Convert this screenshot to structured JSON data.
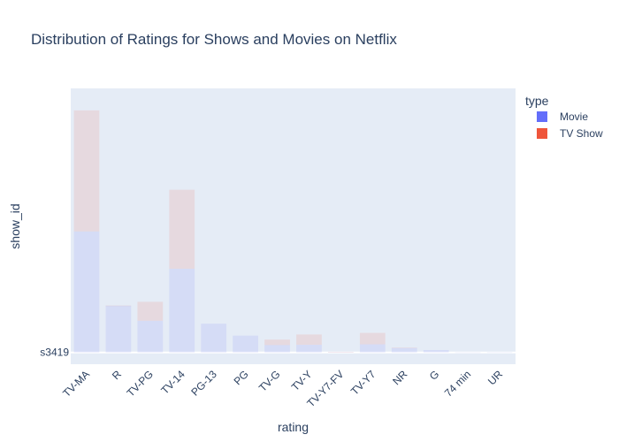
{
  "chart_data": {
    "type": "bar",
    "barmode": "stack",
    "title": "Distribution of Ratings for Shows and Movies on Netflix",
    "xlabel": "rating",
    "ylabel": "show_id",
    "y_tick_label": "s3419",
    "categories": [
      "TV-MA",
      "R",
      "TV-PG",
      "TV-14",
      "PG-13",
      "PG",
      "TV-G",
      "TV-Y",
      "TV-Y7-FV",
      "TV-Y7",
      "NR",
      "G",
      "74 min",
      "UR"
    ],
    "legend_title": "type",
    "legend_position": "top-right",
    "series": [
      {
        "name": "Movie",
        "color": "#636efa",
        "values": [
          2062,
          797,
          540,
          1427,
          490,
          287,
          126,
          131,
          5,
          139,
          75,
          41,
          1,
          3
        ]
      },
      {
        "name": "TV Show",
        "color": "#ef553b",
        "values": [
          2063,
          2,
          323,
          1346,
          0,
          0,
          94,
          176,
          1,
          195,
          5,
          0,
          0,
          0
        ]
      }
    ],
    "ylim": [
      -200,
      4500
    ],
    "grid": true
  },
  "colors": {
    "plot_bg": "#e5ecf6",
    "grid": "#ffffff",
    "text": "#2a3f5f"
  }
}
